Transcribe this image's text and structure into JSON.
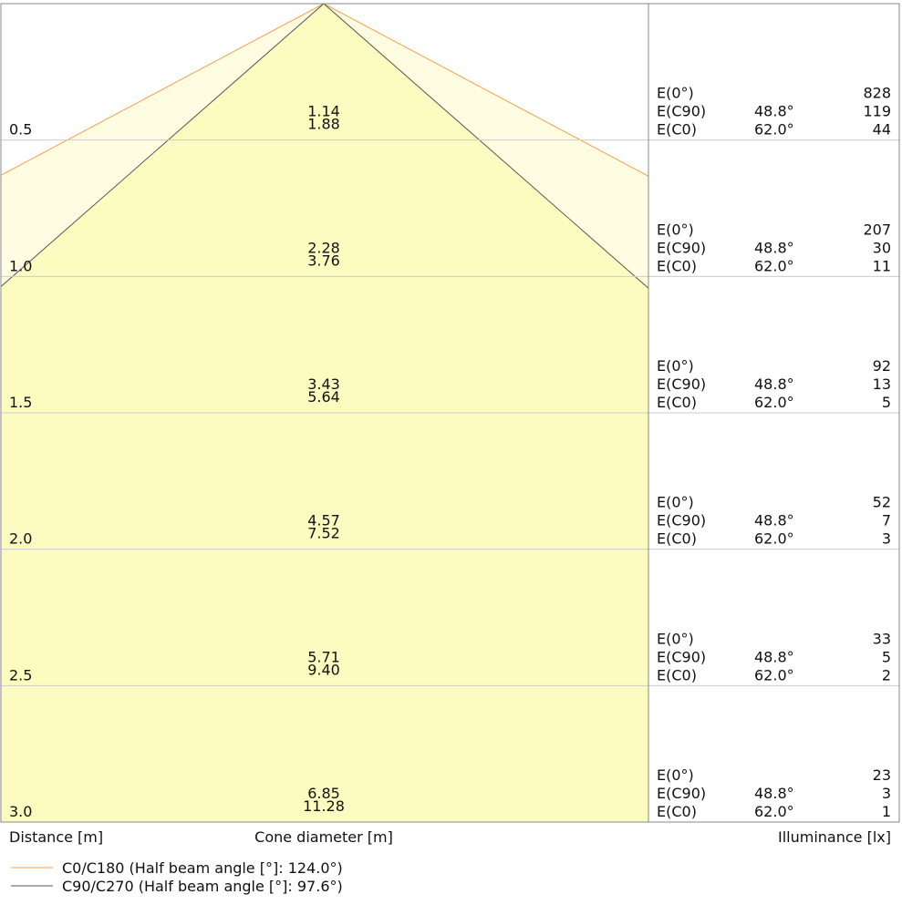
{
  "chart_data": {
    "type": "cone",
    "rows": [
      {
        "distance": 0.5,
        "diameter_c90": 1.14,
        "diameter_c0": 1.88,
        "e0": 828,
        "e_c90": 119,
        "e_c0": 44
      },
      {
        "distance": {
          "value": 1.0,
          "label": "1.0"
        },
        "diameter_c90": 2.28,
        "diameter_c0": 3.76,
        "e0": 207,
        "e_c90": 30,
        "e_c0": 11
      },
      {
        "distance": 1.5,
        "diameter_c90": 3.43,
        "diameter_c0": 5.64,
        "e0": 92,
        "e_c90": 13,
        "e_c0": 5
      },
      {
        "distance": {
          "value": 2.0,
          "label": "2.0"
        },
        "diameter_c90": 4.57,
        "diameter_c0": 7.52,
        "e0": 52,
        "e_c90": 7,
        "e_c0": 3
      },
      {
        "distance": 2.5,
        "diameter_c90": 5.71,
        "diameter_c0": {
          "value": 9.4,
          "label": "9.40"
        },
        "e0": 33,
        "e_c90": 5,
        "e_c0": 2
      },
      {
        "distance": {
          "value": 3.0,
          "label": "3.0"
        },
        "diameter_c90": 6.85,
        "diameter_c0": 11.28,
        "e0": 23,
        "e_c90": 3,
        "e_c0": 1
      }
    ],
    "e_labels": {
      "e0": "E(0°)",
      "e_c90": "E(C90)",
      "e_c0": "E(C0)"
    },
    "angle_c90": {
      "value": 48.8,
      "label": "48.8°"
    },
    "angle_c0": {
      "value": 62.0,
      "label": "62.0°"
    },
    "distance_label": "Distance [m]",
    "diameter_label": "Cone diameter [m]",
    "illuminance_label": "Illuminance [lx]",
    "series": [
      {
        "name": "C0/C180 (Half beam angle [°]: 124.0°)",
        "color": "#f5a045",
        "fill": "#fefde2"
      },
      {
        "name": "C90/C270 (Half beam angle [°]: 97.6°)",
        "color": "#555555",
        "fill": "#fdfcc0"
      }
    ]
  }
}
